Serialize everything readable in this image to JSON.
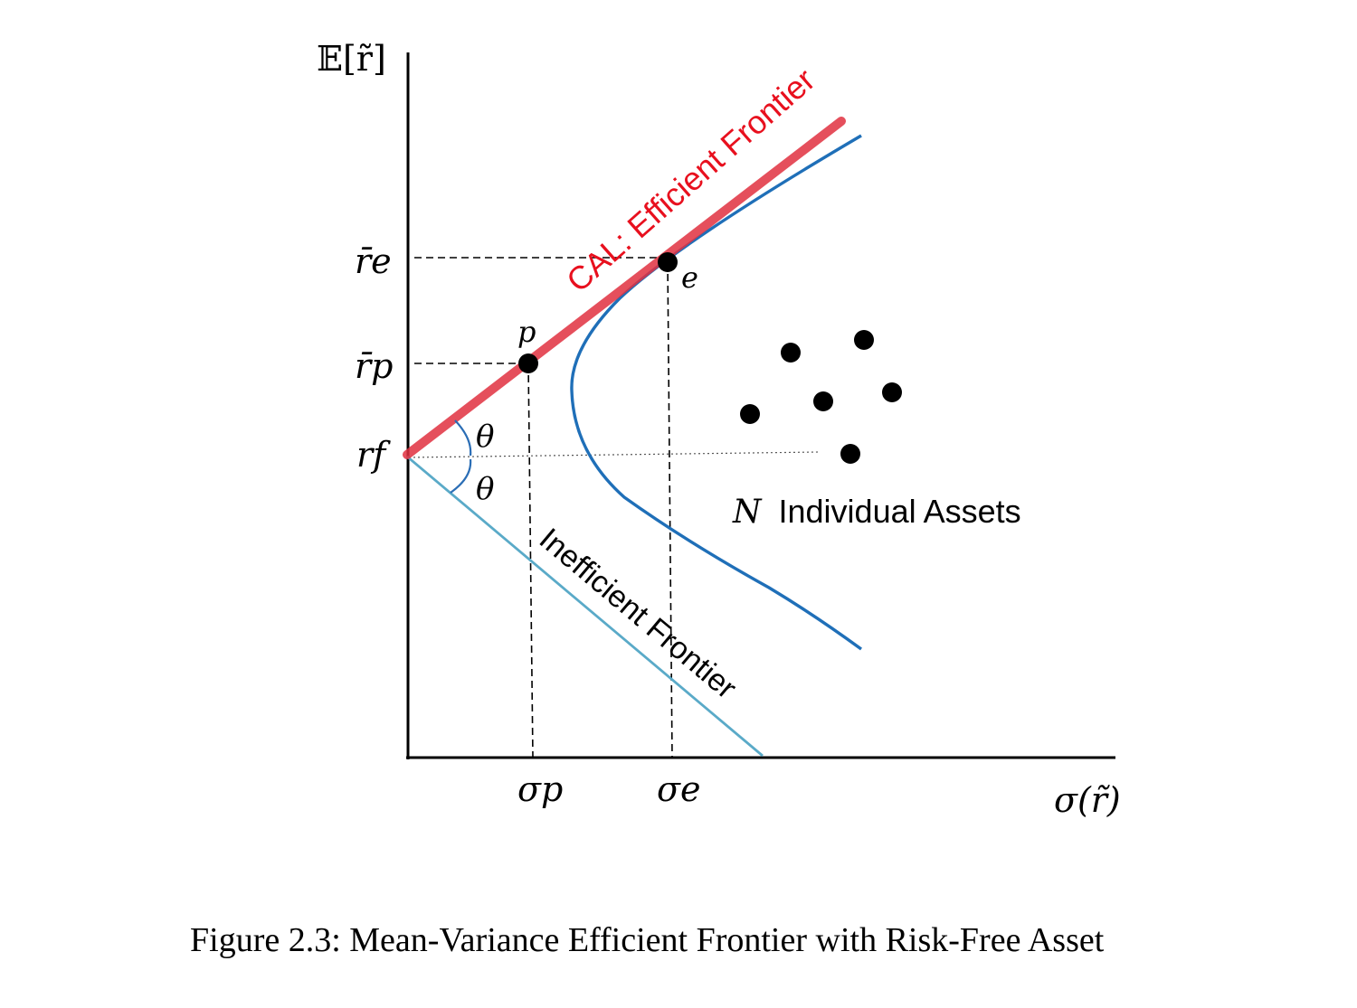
{
  "axes": {
    "y_label": "𝔼[r̃]",
    "x_label": "σ(r̃)"
  },
  "tick_labels": {
    "re": "r̄e",
    "rp": "r̄p",
    "rf": "rf",
    "sigma_p": "σp",
    "sigma_e": "σe"
  },
  "labels": {
    "cal": "CAL: Efficient Frontier",
    "inefficient": "Inefficient Frontier",
    "assets_n": "N",
    "assets": "Individual Assets",
    "point_p": "p",
    "point_e": "e",
    "theta_upper": "θ",
    "theta_lower": "θ"
  },
  "colors": {
    "cal": "#e03040",
    "cal_text": "#e8101e",
    "frontier": "#1f6fb8",
    "inefficient": "#5aaac8",
    "points": "#000000"
  },
  "caption": "Figure 2.3: Mean-Variance Efficient Frontier with Risk-Free Asset"
}
